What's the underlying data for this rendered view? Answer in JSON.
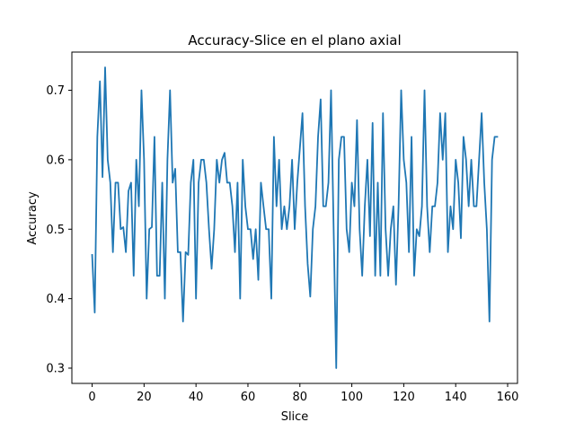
{
  "chart_data": {
    "type": "line",
    "title": "Accuracy-Slice en el plano axial",
    "xlabel": "Slice",
    "ylabel": "Accuracy",
    "xlim": [
      -7.8,
      163.8
    ],
    "ylim": [
      0.278,
      0.755
    ],
    "xticks": [
      0,
      20,
      40,
      60,
      80,
      100,
      120,
      140,
      160
    ],
    "yticks": [
      0.3,
      0.4,
      0.5,
      0.6,
      0.7
    ],
    "ytick_labels": [
      "0.3",
      "0.4",
      "0.5",
      "0.6",
      "0.7"
    ],
    "grid": false,
    "line_color": "#1f77b4",
    "series": [
      {
        "x": [
          0,
          1,
          2,
          3,
          4,
          5,
          6,
          7,
          8,
          9,
          10,
          11,
          12,
          13,
          14,
          15,
          16,
          17,
          18,
          19,
          20,
          21,
          22,
          23,
          24,
          25,
          26,
          27,
          28,
          29,
          30,
          31,
          32,
          33,
          34,
          35,
          36,
          37,
          38,
          39,
          40,
          41,
          42,
          43,
          44,
          45,
          46,
          47,
          48,
          49,
          50,
          51,
          52,
          53,
          54,
          55,
          56,
          57,
          58,
          59,
          60,
          61,
          62,
          63,
          64,
          65,
          66,
          67,
          68,
          69,
          70,
          71,
          72,
          73,
          74,
          75,
          76,
          77,
          78,
          79,
          80,
          81,
          82,
          83,
          84,
          85,
          86,
          87,
          88,
          89,
          90,
          91,
          92,
          93,
          94,
          95,
          96,
          97,
          98,
          99,
          100,
          101,
          102,
          103,
          104,
          105,
          106,
          107,
          108,
          109,
          110,
          111,
          112,
          113,
          114,
          115,
          116,
          117,
          118,
          119,
          120,
          121,
          122,
          123,
          124,
          125,
          126,
          127,
          128,
          129,
          130,
          131,
          132,
          133,
          134,
          135,
          136,
          137,
          138,
          139,
          140,
          141,
          142,
          143,
          144,
          145,
          146,
          147,
          148,
          149,
          150,
          151,
          152,
          153,
          154,
          155,
          156
        ],
        "values": [
          0.463,
          0.38,
          0.633,
          0.713,
          0.575,
          0.733,
          0.6,
          0.567,
          0.467,
          0.567,
          0.567,
          0.5,
          0.503,
          0.467,
          0.555,
          0.567,
          0.433,
          0.6,
          0.533,
          0.7,
          0.6,
          0.4,
          0.5,
          0.503,
          0.633,
          0.433,
          0.433,
          0.567,
          0.4,
          0.6,
          0.7,
          0.567,
          0.587,
          0.467,
          0.467,
          0.367,
          0.467,
          0.463,
          0.567,
          0.6,
          0.4,
          0.567,
          0.6,
          0.6,
          0.567,
          0.5,
          0.443,
          0.5,
          0.6,
          0.567,
          0.6,
          0.61,
          0.567,
          0.567,
          0.533,
          0.467,
          0.567,
          0.4,
          0.6,
          0.533,
          0.5,
          0.5,
          0.457,
          0.5,
          0.427,
          0.567,
          0.533,
          0.5,
          0.5,
          0.4,
          0.633,
          0.533,
          0.6,
          0.5,
          0.533,
          0.5,
          0.533,
          0.6,
          0.5,
          0.567,
          0.617,
          0.667,
          0.533,
          0.45,
          0.403,
          0.5,
          0.533,
          0.633,
          0.687,
          0.533,
          0.533,
          0.567,
          0.7,
          0.5,
          0.3,
          0.6,
          0.633,
          0.633,
          0.5,
          0.467,
          0.567,
          0.533,
          0.657,
          0.5,
          0.433,
          0.533,
          0.6,
          0.49,
          0.653,
          0.433,
          0.567,
          0.433,
          0.667,
          0.5,
          0.433,
          0.5,
          0.533,
          0.42,
          0.533,
          0.7,
          0.6,
          0.567,
          0.467,
          0.633,
          0.433,
          0.5,
          0.49,
          0.533,
          0.7,
          0.533,
          0.467,
          0.533,
          0.533,
          0.567,
          0.667,
          0.6,
          0.667,
          0.467,
          0.533,
          0.5,
          0.6,
          0.567,
          0.487,
          0.633,
          0.6,
          0.533,
          0.6,
          0.533,
          0.533,
          0.6,
          0.667,
          0.567,
          0.5,
          0.367,
          0.6,
          0.633,
          0.633
        ]
      }
    ]
  }
}
